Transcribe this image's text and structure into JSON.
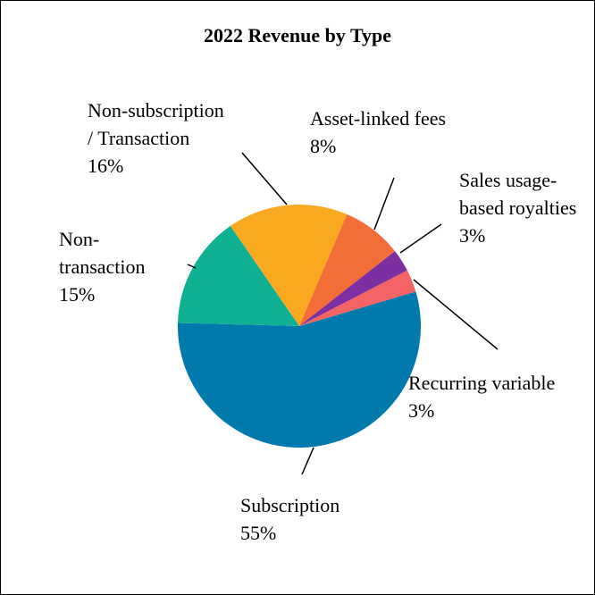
{
  "chart_data": {
    "type": "pie",
    "title": "2022 Revenue by Type",
    "categories": [
      "Subscription",
      "Non-transaction",
      "Non-subscription / Transaction",
      "Asset-linked fees",
      "Sales usage-based royalties",
      "Recurring variable"
    ],
    "values": [
      55,
      15,
      16,
      8,
      3,
      3
    ],
    "value_labels": [
      "55%",
      "15%",
      "16%",
      "8%",
      "3%",
      "3%"
    ],
    "colors": [
      "#0079ad",
      "#10b093",
      "#f8a91f",
      "#f26d38",
      "#7b2fa0",
      "#f56464"
    ]
  }
}
